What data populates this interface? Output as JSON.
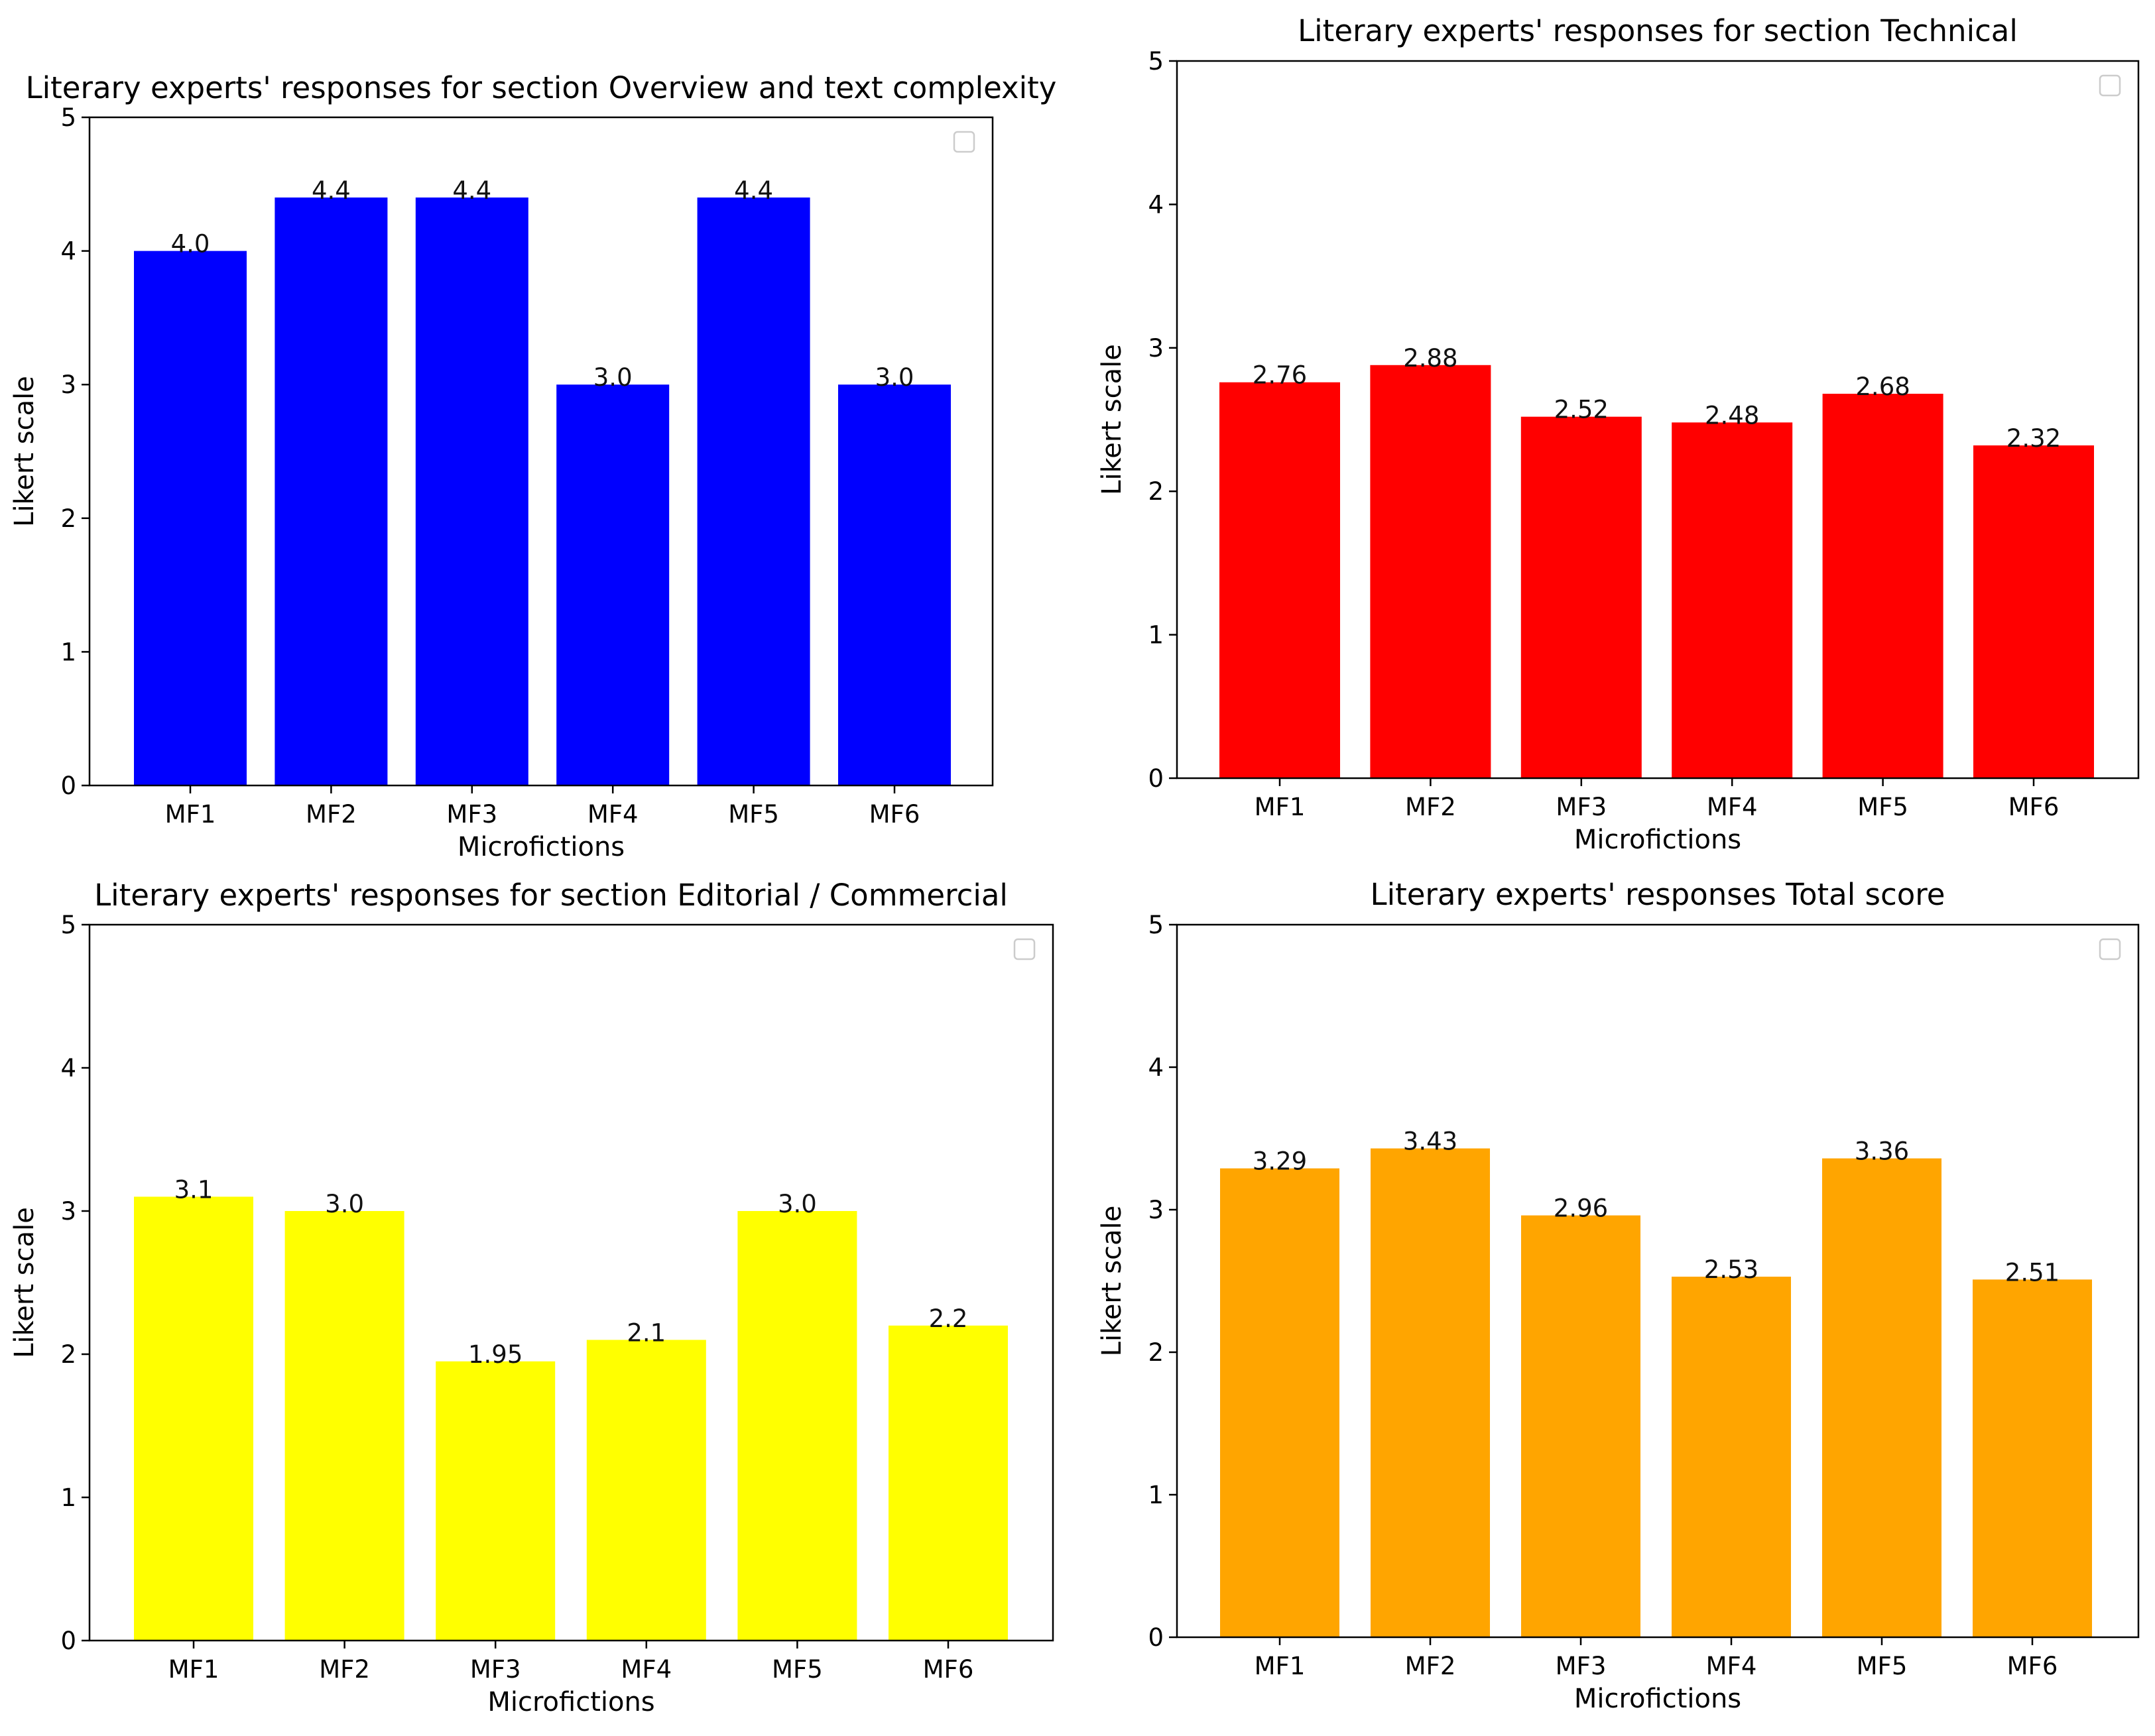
{
  "chart_data": [
    {
      "type": "bar",
      "title": "Literary experts' responses for section Overview and text complexity",
      "categories": [
        "MF1",
        "MF2",
        "MF3",
        "MF4",
        "MF5",
        "MF6"
      ],
      "values": [
        4.0,
        4.4,
        4.4,
        3.0,
        4.4,
        3.0
      ],
      "value_labels": [
        "4.0",
        "4.4",
        "4.4",
        "3.0",
        "4.4",
        "3.0"
      ],
      "color": "#0000ff",
      "xlabel": "Microfictions",
      "ylabel": "Likert scale",
      "ylim": [
        0,
        5
      ],
      "yticks": [
        "0",
        "1",
        "2",
        "3",
        "4",
        "5"
      ],
      "legend": "top-right (empty)"
    },
    {
      "type": "bar",
      "title": "Literary experts' responses for section Technical",
      "categories": [
        "MF1",
        "MF2",
        "MF3",
        "MF4",
        "MF5",
        "MF6"
      ],
      "values": [
        2.76,
        2.88,
        2.52,
        2.48,
        2.68,
        2.32
      ],
      "value_labels": [
        "2.76",
        "2.88",
        "2.52",
        "2.48",
        "2.68",
        "2.32"
      ],
      "color": "#ff0000",
      "xlabel": "Microfictions",
      "ylabel": "Likert scale",
      "ylim": [
        0,
        5
      ],
      "yticks": [
        "0",
        "1",
        "2",
        "3",
        "4",
        "5"
      ],
      "legend": "top-right (empty)"
    },
    {
      "type": "bar",
      "title": "Literary experts' responses for section Editorial / Commercial",
      "categories": [
        "MF1",
        "MF2",
        "MF3",
        "MF4",
        "MF5",
        "MF6"
      ],
      "values": [
        3.1,
        3.0,
        1.95,
        2.1,
        3.0,
        2.2
      ],
      "value_labels": [
        "3.1",
        "3.0",
        "1.95",
        "2.1",
        "3.0",
        "2.2"
      ],
      "color": "#ffff00",
      "xlabel": "Microfictions",
      "ylabel": "Likert scale",
      "ylim": [
        0,
        5
      ],
      "yticks": [
        "0",
        "1",
        "2",
        "3",
        "4",
        "5"
      ],
      "legend": "top-right (empty)"
    },
    {
      "type": "bar",
      "title": "Literary experts' responses Total score",
      "categories": [
        "MF1",
        "MF2",
        "MF3",
        "MF4",
        "MF5",
        "MF6"
      ],
      "values": [
        3.29,
        3.43,
        2.96,
        2.53,
        3.36,
        2.51
      ],
      "value_labels": [
        "3.29",
        "3.43",
        "2.96",
        "2.53",
        "3.36",
        "2.51"
      ],
      "color": "#ffa500",
      "xlabel": "Microfictions",
      "ylabel": "Likert scale",
      "ylim": [
        0,
        5
      ],
      "yticks": [
        "0",
        "1",
        "2",
        "3",
        "4",
        "5"
      ],
      "legend": "top-right (empty)"
    }
  ]
}
